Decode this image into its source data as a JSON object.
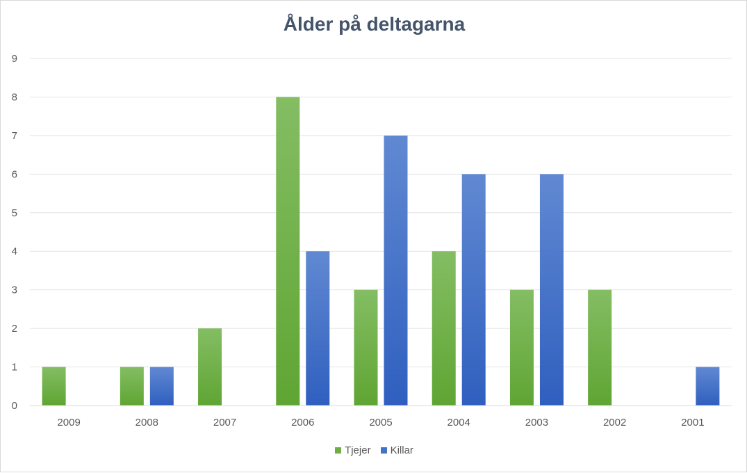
{
  "chart_data": {
    "type": "bar",
    "title": "Ålder på deltagarna",
    "xlabel": "",
    "ylabel": "",
    "categories": [
      "2009",
      "2008",
      "2007",
      "2006",
      "2005",
      "2004",
      "2003",
      "2002",
      "2001"
    ],
    "series": [
      {
        "name": "Tjejer",
        "color": "#70ad47",
        "values": [
          1,
          1,
          2,
          8,
          3,
          4,
          3,
          3,
          0
        ]
      },
      {
        "name": "Killar",
        "color": "#4472c4",
        "values": [
          0,
          1,
          0,
          4,
          7,
          6,
          6,
          0,
          1
        ]
      }
    ],
    "ylim": [
      0,
      9
    ],
    "yticks": [
      "0",
      "1",
      "2",
      "3",
      "4",
      "5",
      "6",
      "7",
      "8",
      "9"
    ],
    "grid": true,
    "legend_position": "bottom"
  }
}
